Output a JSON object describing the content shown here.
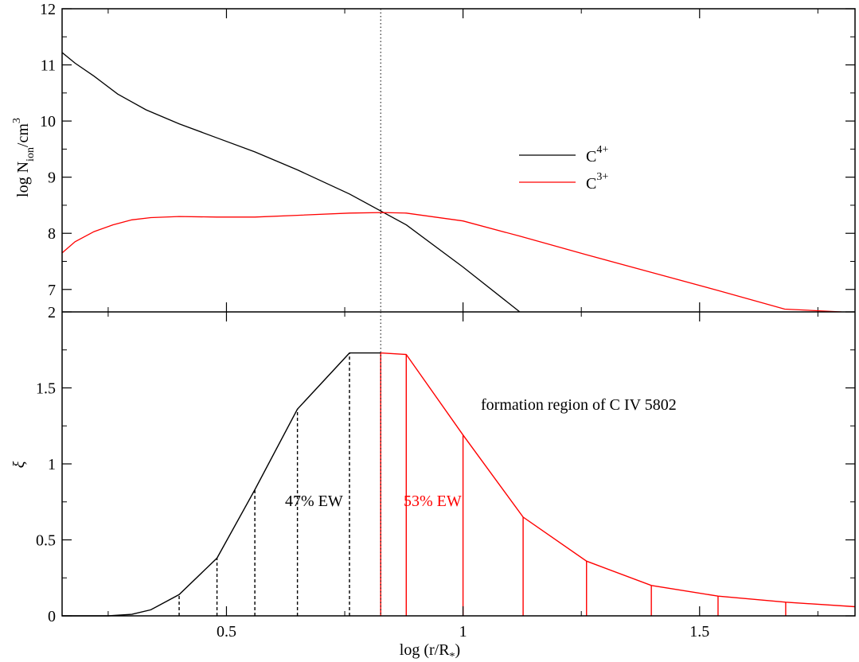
{
  "chart_data": [
    {
      "type": "line",
      "panel": "top",
      "ylabel": {
        "main": "log N",
        "sub": "ion",
        "mid": "/cm",
        "sup": "3"
      },
      "xlim": [
        0.1526,
        1.8285
      ],
      "ylim": [
        6.6,
        12
      ],
      "yticks": [
        7,
        8,
        9,
        10,
        11,
        12
      ],
      "x_ticks_labeled": false,
      "series": [
        {
          "name": "C4+",
          "legend": {
            "base": "C",
            "sup": "4+"
          },
          "color": "#000000",
          "x": [
            0.1526,
            0.18,
            0.22,
            0.27,
            0.33,
            0.4,
            0.48,
            0.56,
            0.65,
            0.76,
            0.83,
            0.88,
            1.0,
            1.12
          ],
          "y": [
            11.22,
            11.03,
            10.8,
            10.48,
            10.2,
            9.95,
            9.7,
            9.45,
            9.13,
            8.7,
            8.38,
            8.15,
            7.4,
            6.6
          ]
        },
        {
          "name": "C3+",
          "legend": {
            "base": "C",
            "sup": "3+"
          },
          "color": "#ff0000",
          "x": [
            0.1526,
            0.18,
            0.22,
            0.26,
            0.3,
            0.34,
            0.4,
            0.48,
            0.56,
            0.65,
            0.76,
            0.83,
            0.88,
            1.0,
            1.12,
            1.26,
            1.4,
            1.54,
            1.68,
            1.8
          ],
          "y": [
            7.65,
            7.85,
            8.03,
            8.15,
            8.24,
            8.28,
            8.3,
            8.29,
            8.29,
            8.32,
            8.36,
            8.37,
            8.36,
            8.22,
            7.95,
            7.62,
            7.3,
            6.98,
            6.65,
            6.6
          ]
        }
      ],
      "vline": {
        "x": 0.826,
        "style": "dotted"
      }
    },
    {
      "type": "line",
      "panel": "bottom",
      "xlabel": {
        "main": "log (r/R",
        "sub": "*",
        "end": ")"
      },
      "ylabel": "ξ",
      "xlim": [
        0.1526,
        1.8285
      ],
      "ylim": [
        0,
        2
      ],
      "xticks": [
        0.5,
        1,
        1.5
      ],
      "yticks": [
        0,
        0.5,
        1,
        1.5,
        2
      ],
      "ytick_labels": [
        "0",
        "0.5",
        "1",
        "1.5",
        "2"
      ],
      "series": [
        {
          "name": "C4+ contribution",
          "color": "#000000",
          "x": [
            0.1526,
            0.25,
            0.3,
            0.34,
            0.4,
            0.48,
            0.56,
            0.65,
            0.76,
            0.826
          ],
          "y": [
            0,
            0.0,
            0.01,
            0.04,
            0.14,
            0.38,
            0.83,
            1.36,
            1.73,
            1.73
          ]
        },
        {
          "name": "C3+ contribution",
          "color": "#ff0000",
          "x": [
            0.826,
            0.88,
            1.0,
            1.127,
            1.261,
            1.398,
            1.539,
            1.682,
            1.8285
          ],
          "y": [
            1.73,
            1.72,
            1.19,
            0.65,
            0.36,
            0.2,
            0.13,
            0.09,
            0.06
          ]
        }
      ],
      "black_dashed_drops": [
        0.4,
        0.48,
        0.56,
        0.65,
        0.76
      ],
      "red_solid_drops": [
        0.826,
        0.88,
        1.0,
        1.127,
        1.261,
        1.398,
        1.539,
        1.682
      ],
      "vline": {
        "x": 0.826,
        "style": "dotted"
      },
      "annotations": {
        "formation": "formation region of  C IV 5802",
        "c4_share": "47% EW",
        "c3_share": "53% EW"
      }
    }
  ]
}
